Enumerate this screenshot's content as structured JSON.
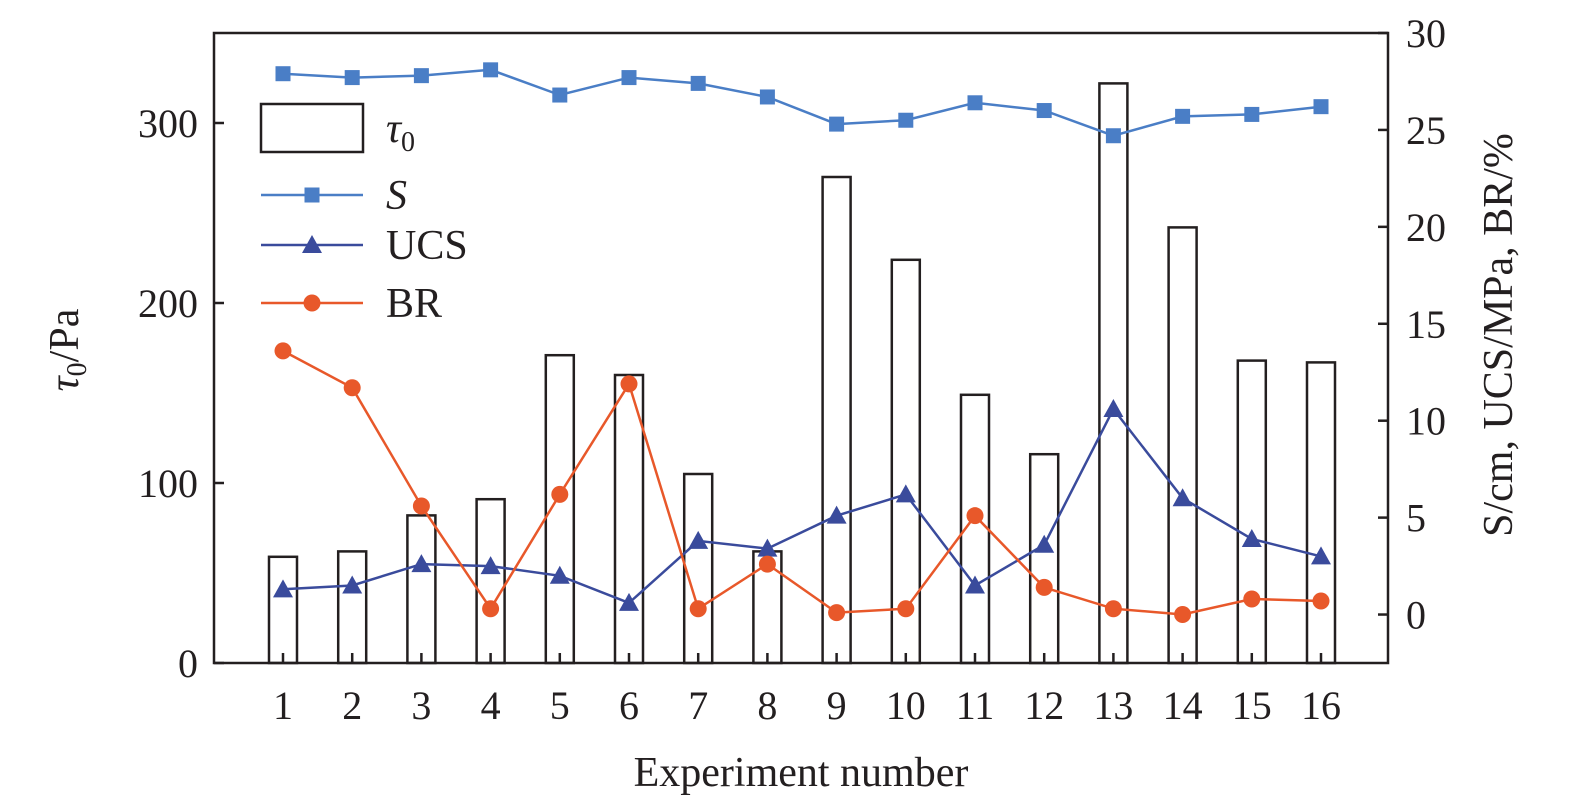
{
  "chart_data": {
    "type": "bar",
    "title": "",
    "xlabel": "Experiment number",
    "ylabel_left": {
      "symbol": "τ",
      "subscript": "0",
      "unit": "/Pa"
    },
    "ylabel_right": "S/cm, UCS/MPa, BR/%",
    "categories": [
      "1",
      "2",
      "3",
      "4",
      "5",
      "6",
      "7",
      "8",
      "9",
      "10",
      "11",
      "12",
      "13",
      "14",
      "15",
      "16"
    ],
    "y_left_lim": [
      0,
      350
    ],
    "y_left_ticks": [
      0,
      100,
      200,
      300
    ],
    "y_right_lim": [
      -2.5,
      30
    ],
    "y_right_ticks": [
      0,
      5,
      10,
      15,
      20,
      25,
      30
    ],
    "legend_position": "top-left",
    "grid": false,
    "series": [
      {
        "name": "τ",
        "name_subscript": "0",
        "kind": "bar",
        "axis": "left",
        "color": "#231f20",
        "values": [
          59,
          62,
          82,
          91,
          171,
          160,
          105,
          62,
          270,
          224,
          149,
          116,
          322,
          242,
          168,
          167
        ]
      },
      {
        "name": "S",
        "italic": true,
        "kind": "line",
        "axis": "right",
        "color": "#4a7ec6",
        "marker": "square",
        "values": [
          27.9,
          27.7,
          27.8,
          28.1,
          26.8,
          27.7,
          27.4,
          26.7,
          25.3,
          25.5,
          26.4,
          26.0,
          24.7,
          25.7,
          25.8,
          26.2
        ]
      },
      {
        "name": "UCS",
        "kind": "line",
        "axis": "right",
        "color": "#3a4b9c",
        "marker": "triangle",
        "values": [
          1.3,
          1.5,
          2.6,
          2.5,
          2.0,
          0.6,
          3.8,
          3.4,
          5.1,
          6.2,
          1.5,
          3.6,
          10.6,
          6.0,
          3.9,
          3.0
        ]
      },
      {
        "name": "BR",
        "kind": "line",
        "axis": "right",
        "color": "#e8582a",
        "marker": "circle",
        "values": [
          13.6,
          11.7,
          5.6,
          0.3,
          6.2,
          11.9,
          0.3,
          2.6,
          0.1,
          0.3,
          5.1,
          1.4,
          0.3,
          0.0,
          0.8,
          0.7
        ]
      }
    ]
  }
}
